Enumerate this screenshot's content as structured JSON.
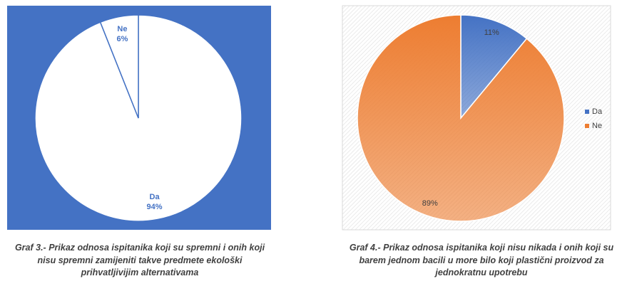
{
  "chart_data": [
    {
      "type": "pie",
      "categories": [
        "Da",
        "Ne"
      ],
      "values": [
        94,
        6
      ],
      "value_labels": [
        "94%",
        "6%"
      ],
      "colors": [
        "#ffffff",
        "#ffffff"
      ],
      "stroke": "#4472c4",
      "background": "#4472c4",
      "label_color": "#4472c4",
      "caption": "Graf 3.- Prikaz odnosa ispitanika koji su spremni i onih koji nisu spremni zamijeniti takve predmete ekološki prihvatljivijim alternativama"
    },
    {
      "type": "pie",
      "categories": [
        "Da",
        "Ne"
      ],
      "values": [
        11,
        89
      ],
      "value_labels": [
        "11%",
        "89%"
      ],
      "colors": [
        "#4472c4",
        "#ed7d31"
      ],
      "stroke": "#ffffff",
      "label_color": "#404040",
      "legend": "right",
      "caption": "Graf 4.- Prikaz odnosa ispitanika koji nisu nikada i onih koji su barem jednom bacili u more bilo koji plastični proizvod za jednokratnu upotrebu"
    }
  ]
}
